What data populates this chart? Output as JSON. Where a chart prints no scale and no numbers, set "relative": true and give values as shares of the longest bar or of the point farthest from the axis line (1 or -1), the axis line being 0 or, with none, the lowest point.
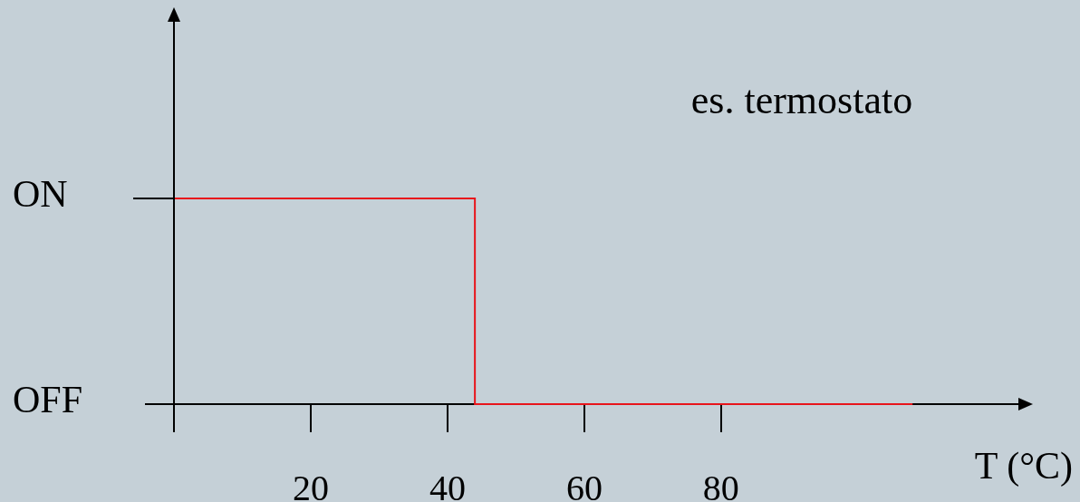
{
  "chart_data": {
    "type": "step",
    "xlabel": "T (°C)",
    "relative": true,
    "annotations": [
      "ON",
      "OFF",
      "es. termostato"
    ],
    "x": [
      0,
      44,
      108
    ],
    "series": [
      {
        "color": "#e8141b",
        "values": [
          1,
          0,
          0
        ]
      }
    ],
    "xlim": [
      0,
      124
    ],
    "xticks": [
      {
        "value": 0,
        "label": null
      },
      20,
      40,
      60,
      80
    ],
    "grid": false,
    "legend": false,
    "marker": "none",
    "line_style": "solid"
  }
}
